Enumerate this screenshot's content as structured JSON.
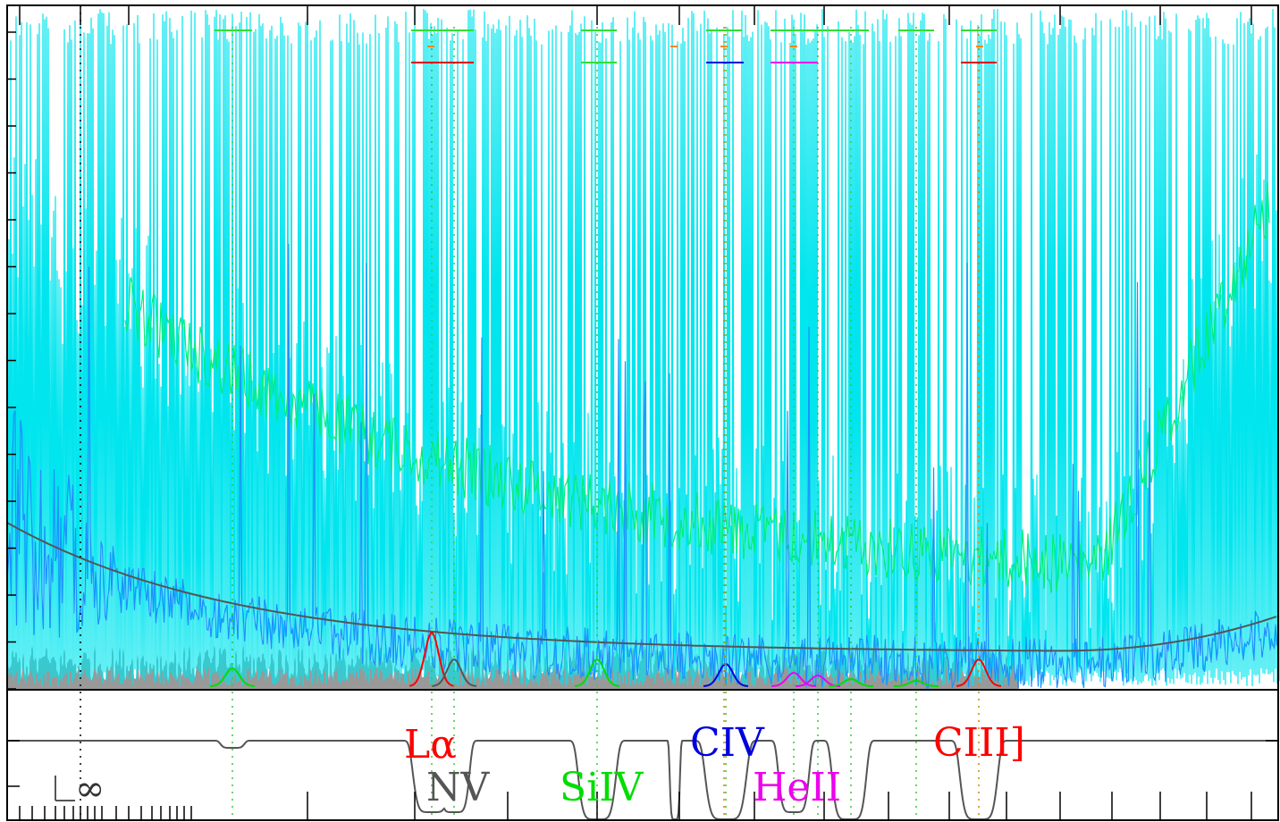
{
  "chart_data": {
    "type": "line",
    "title": "",
    "xlabel": "",
    "ylabel": "",
    "grid": false,
    "legend": "none",
    "series": [
      {
        "color": "#00e5ee",
        "style": "noisy spectrum with spikes to top"
      },
      {
        "color": "#00ee76",
        "style": "smoothed spectrum"
      },
      {
        "color": "#1e90ff",
        "style": "observed flux"
      },
      {
        "color": "#999999",
        "style": "error spectrum"
      },
      {
        "color": "#555555",
        "style": "continuum fit"
      }
    ],
    "emission_lines": [
      {
        "label": "Lα",
        "color": "#ff0000"
      },
      {
        "label": "NV",
        "color": "#555555"
      },
      {
        "label": "SiIV",
        "color": "#00dd00"
      },
      {
        "label": "CIV",
        "color": "#0000dd"
      },
      {
        "label": "HeII",
        "color": "#ee00ee"
      },
      {
        "label": "CIII]",
        "color": "#ff0000"
      }
    ],
    "lower_panel": {
      "marker_label": "∞",
      "description": "transmission profile of emission line windows"
    }
  },
  "colors": {
    "cyan": "#00e5ee",
    "green": "#00ee76",
    "blue": "#1e90ff",
    "gray": "#999999",
    "dark": "#555555",
    "dotted_green": "#33cc33",
    "dotted_orange": "#cc8800"
  }
}
